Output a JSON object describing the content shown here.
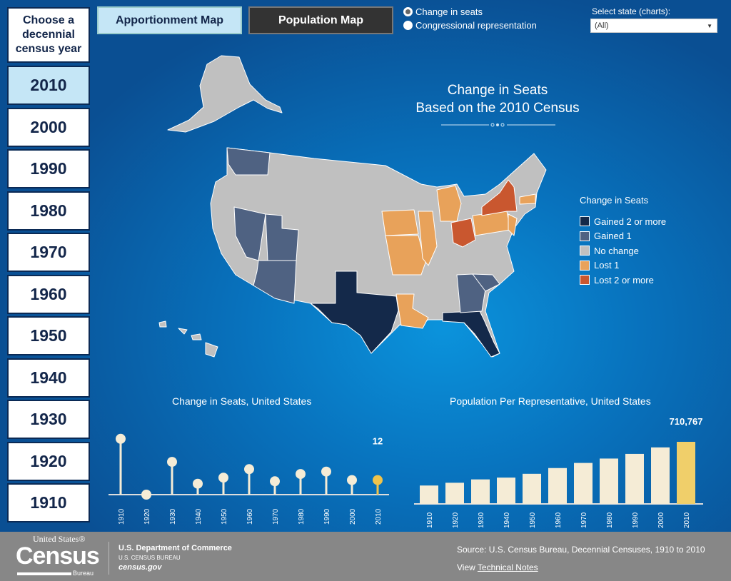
{
  "sidebar": {
    "heading": "Choose a decennial census year",
    "years": [
      "2010",
      "2000",
      "1990",
      "1980",
      "1970",
      "1960",
      "1950",
      "1940",
      "1930",
      "1920",
      "1910"
    ],
    "selected": "2010"
  },
  "toolbar": {
    "apportionment_map": "Apportionment Map",
    "population_map": "Population Map"
  },
  "radios": [
    {
      "label": "Change in seats",
      "checked": true
    },
    {
      "label": "Congressional representation",
      "checked": false
    }
  ],
  "state_select": {
    "label": "Select state (charts):",
    "value": "(All)"
  },
  "map": {
    "title_line1": "Change in Seats",
    "title_line2": "Based on the 2010 Census",
    "legend": {
      "title": "Change in Seats",
      "items": [
        {
          "label": "Gained 2 or more",
          "color": "#14294a"
        },
        {
          "label": "Gained 1",
          "color": "#4f6282"
        },
        {
          "label": "No change",
          "color": "#c0c0c0"
        },
        {
          "label": "Lost 1",
          "color": "#e8a25a"
        },
        {
          "label": "Lost 2 or more",
          "color": "#c9572f"
        }
      ]
    }
  },
  "chart_data": [
    {
      "type": "lollipop",
      "title": "Change in Seats, United States",
      "categories": [
        "1910",
        "1920",
        "1930",
        "1940",
        "1950",
        "1960",
        "1970",
        "1980",
        "1990",
        "2000",
        "2010"
      ],
      "values": [
        46,
        0,
        27,
        9,
        14,
        21,
        11,
        17,
        19,
        12,
        12
      ],
      "highlight": "2010",
      "highlight_label": "12",
      "colors": {
        "normal": "#f5ecd6",
        "highlight": "#f0c34a"
      }
    },
    {
      "type": "bar",
      "title": "Population Per Representative, United States",
      "categories": [
        "1910",
        "1920",
        "1930",
        "1940",
        "1950",
        "1960",
        "1970",
        "1980",
        "1990",
        "2000",
        "2010"
      ],
      "values": [
        210583,
        242185,
        280675,
        301164,
        344587,
        410481,
        469088,
        519235,
        572466,
        646952,
        710767
      ],
      "highlight": "2010",
      "highlight_label": "710,767",
      "colors": {
        "normal": "#f5ecd6",
        "highlight": "#f0cf6a"
      }
    }
  ],
  "footer": {
    "logo_top": "United States®",
    "logo_main": "Census",
    "logo_sub": "Bureau",
    "dept": "U.S. Department of Commerce",
    "bureau": "U.S. CENSUS BUREAU",
    "site": "census.gov",
    "source": "Source: U.S. Census Bureau, Decennial Censuses, 1910 to 2010",
    "view": "View",
    "tech_notes": "Technical Notes"
  }
}
